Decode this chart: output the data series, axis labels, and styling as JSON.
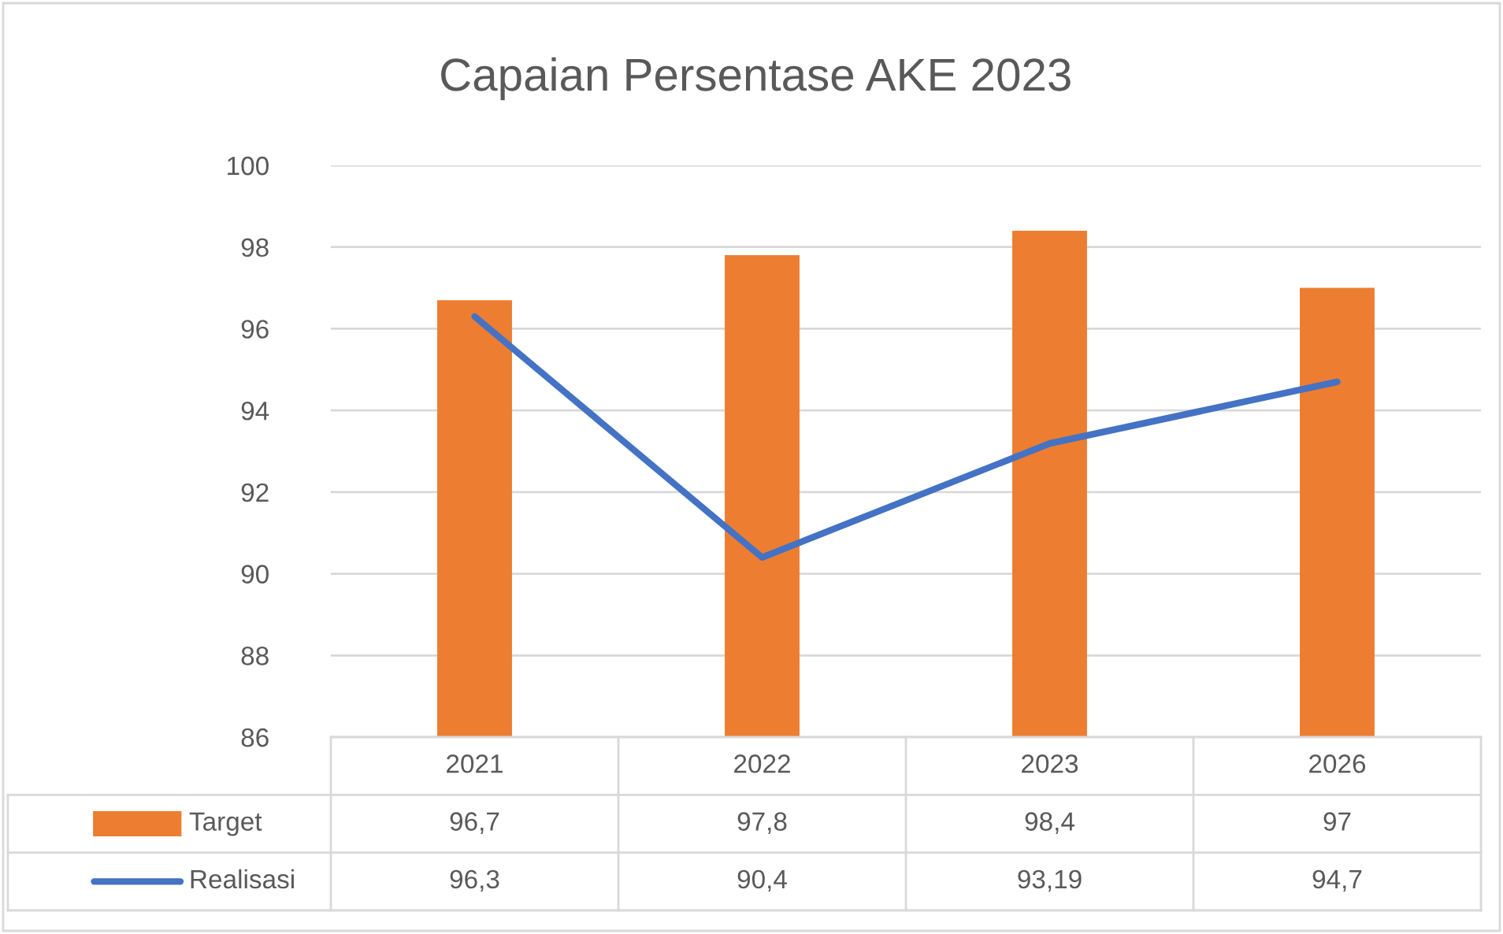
{
  "chart_data": {
    "type": "bar",
    "title": "Capaian Persentase AKE 2023",
    "categories": [
      "2021",
      "2022",
      "2023",
      "2026"
    ],
    "series": [
      {
        "name": "Target",
        "color": "#ed7d31",
        "values": [
          96.7,
          97.8,
          98.4,
          97
        ],
        "value_labels": [
          "96,7",
          "97,8",
          "98,4",
          "97"
        ]
      },
      {
        "name": "Realisasi",
        "type": "line",
        "color": "#4472c4",
        "values": [
          96.3,
          90.4,
          93.19,
          94.7
        ],
        "value_labels": [
          "96,3",
          "90,4",
          "93,19",
          "94,7"
        ]
      }
    ],
    "ylim": [
      86,
      100
    ],
    "yticks": [
      86,
      88,
      90,
      92,
      94,
      96,
      98,
      100
    ],
    "grid": "y",
    "legend": "bottom",
    "marker": "none",
    "line_style": "solid"
  }
}
